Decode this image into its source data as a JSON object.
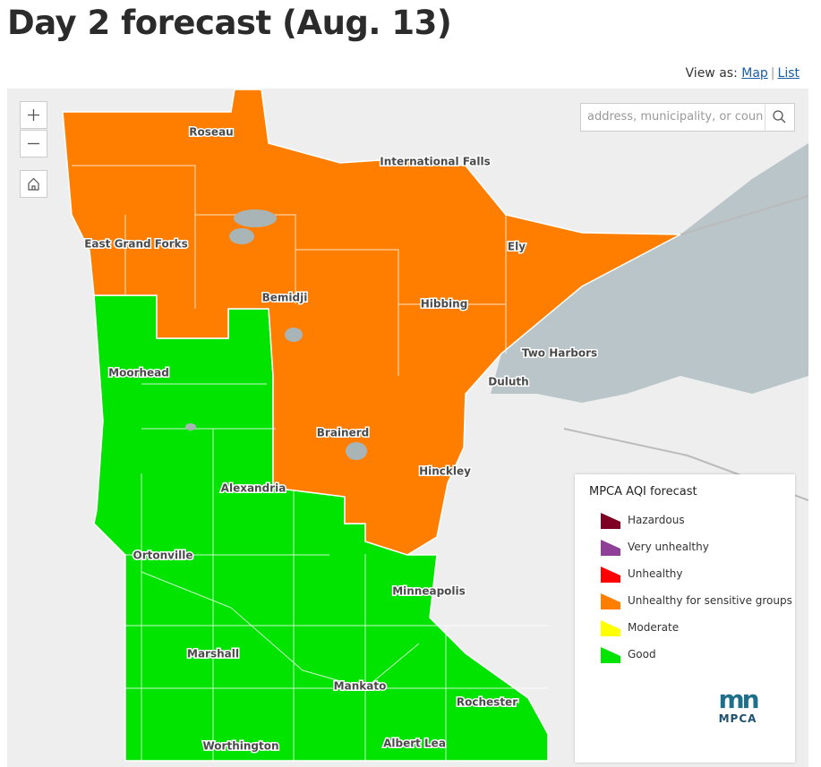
{
  "header": {
    "title": "Day 2 forecast (Aug. 13)",
    "view_as": "View as:",
    "links": [
      "Map",
      "List"
    ]
  },
  "search": {
    "placeholder": "address, municipality, or count"
  },
  "cities": [
    "Roseau",
    "International Falls",
    "East Grand Forks",
    "Ely",
    "Bemidji",
    "Hibbing",
    "Two Harbors",
    "Moorhead",
    "Duluth",
    "Brainerd",
    "Hinckley",
    "Alexandria",
    "Ortonville",
    "Minneapolis",
    "Marshall",
    "Mankato",
    "Rochester",
    "Worthington",
    "Albert Lea"
  ],
  "legend": {
    "title": "MPCA AQI forecast",
    "items": [
      {
        "label": "Hazardous",
        "color": "#7e0023"
      },
      {
        "label": "Very unhealthy",
        "color": "#8f3f97"
      },
      {
        "label": "Unhealthy",
        "color": "#ff0000"
      },
      {
        "label": "Unhealthy for sensitive groups",
        "color": "#ff7e00"
      },
      {
        "label": "Moderate",
        "color": "#ffff00"
      },
      {
        "label": "Good",
        "color": "#00e400"
      }
    ],
    "logo_mark": "mn",
    "logo_text": "MPCA"
  }
}
